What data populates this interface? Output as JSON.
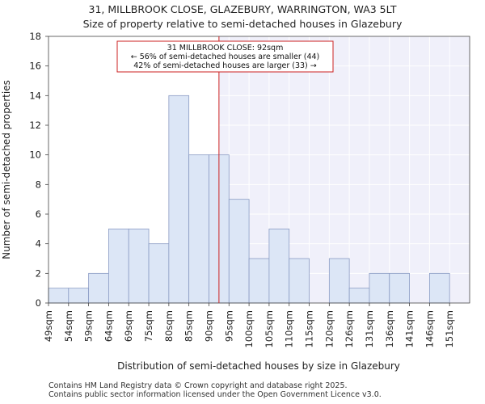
{
  "chart_data": {
    "type": "bar",
    "title": "31, MILLBROOK CLOSE, GLAZEBURY, WARRINGTON, WA3 5LT",
    "subtitle": "Size of property relative to semi-detached houses in Glazebury",
    "xlabel": "Distribution of semi-detached houses by size in Glazebury",
    "ylabel": "Number of semi-detached properties",
    "categories": [
      "49sqm",
      "54sqm",
      "59sqm",
      "64sqm",
      "69sqm",
      "75sqm",
      "80sqm",
      "85sqm",
      "90sqm",
      "95sqm",
      "100sqm",
      "105sqm",
      "110sqm",
      "115sqm",
      "120sqm",
      "126sqm",
      "131sqm",
      "136sqm",
      "141sqm",
      "146sqm",
      "151sqm"
    ],
    "values": [
      1,
      1,
      2,
      5,
      5,
      4,
      14,
      10,
      10,
      7,
      3,
      5,
      3,
      0,
      3,
      1,
      2,
      2,
      0,
      2,
      0
    ],
    "ylim": [
      0,
      18
    ],
    "yticks": [
      0,
      2,
      4,
      6,
      8,
      10,
      12,
      14,
      16,
      18
    ],
    "grid": true,
    "bar_color": "#dce6f6",
    "bar_edge_color": "#8a9bc4",
    "highlight_color": "#f0f0fa",
    "marker": {
      "value_bin_position": 8.5,
      "color": "#cc2222",
      "lines": [
        "31 MILLBROOK CLOSE: 92sqm",
        "← 56% of semi-detached houses are smaller (44)",
        "42% of semi-detached houses are larger (33) →"
      ]
    }
  },
  "footer": {
    "line1": "Contains HM Land Registry data © Crown copyright and database right 2025.",
    "line2": "Contains public sector information licensed under the Open Government Licence v3.0."
  }
}
